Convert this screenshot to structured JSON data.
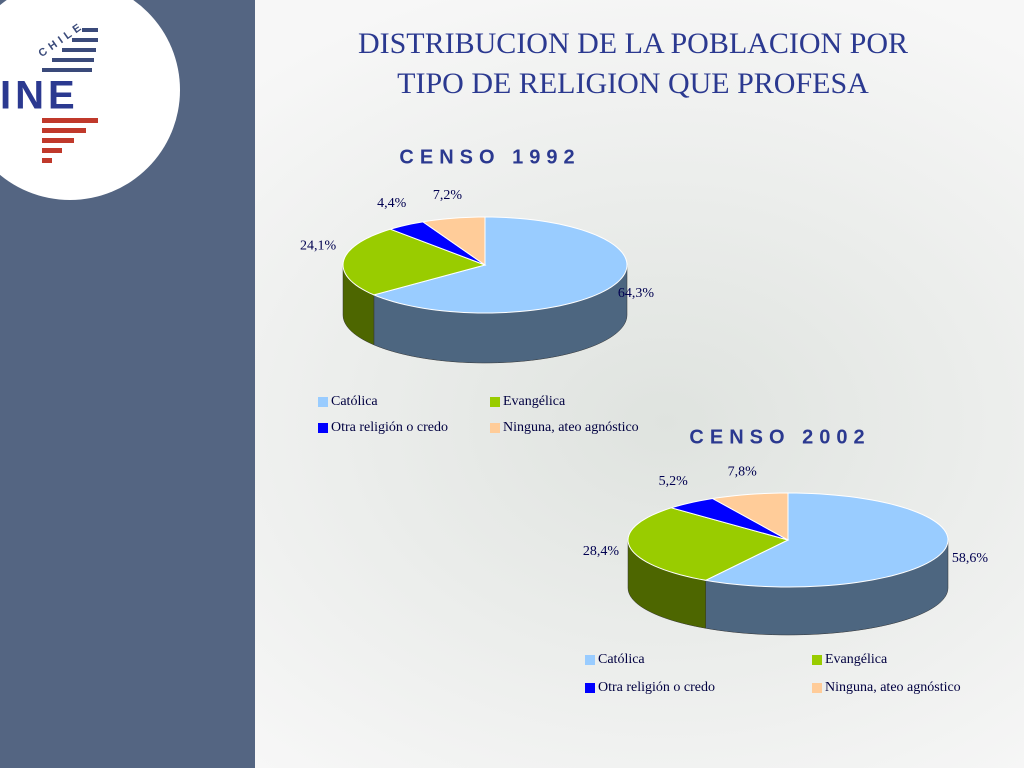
{
  "title": "DISTRIBUCION DE LA POBLACION POR TIPO DE RELIGION QUE PROFESA",
  "logo": {
    "country": "CHILE",
    "name": "INE"
  },
  "chart_data": [
    {
      "type": "pie",
      "title": "CENSO 1992",
      "categories": [
        "Católica",
        "Evangélica",
        "Otra religión o credo",
        "Ninguna, ateo agnóstico"
      ],
      "values": [
        64.3,
        24.1,
        4.4,
        7.2
      ],
      "value_labels": [
        "64,3%",
        "24,1%",
        "4,4%",
        "7,2%"
      ],
      "colors": [
        "#99ccff",
        "#99cc00",
        "#0000ff",
        "#ffcc99"
      ]
    },
    {
      "type": "pie",
      "title": "CENSO 2002",
      "categories": [
        "Católica",
        "Evangélica",
        "Otra religión o credo",
        "Ninguna, ateo agnóstico"
      ],
      "values": [
        58.6,
        28.4,
        5.2,
        7.8
      ],
      "value_labels": [
        "58,6%",
        "28,4%",
        "5,2%",
        "7,8%"
      ],
      "colors": [
        "#99ccff",
        "#99cc00",
        "#0000ff",
        "#ffcc99"
      ]
    }
  ]
}
